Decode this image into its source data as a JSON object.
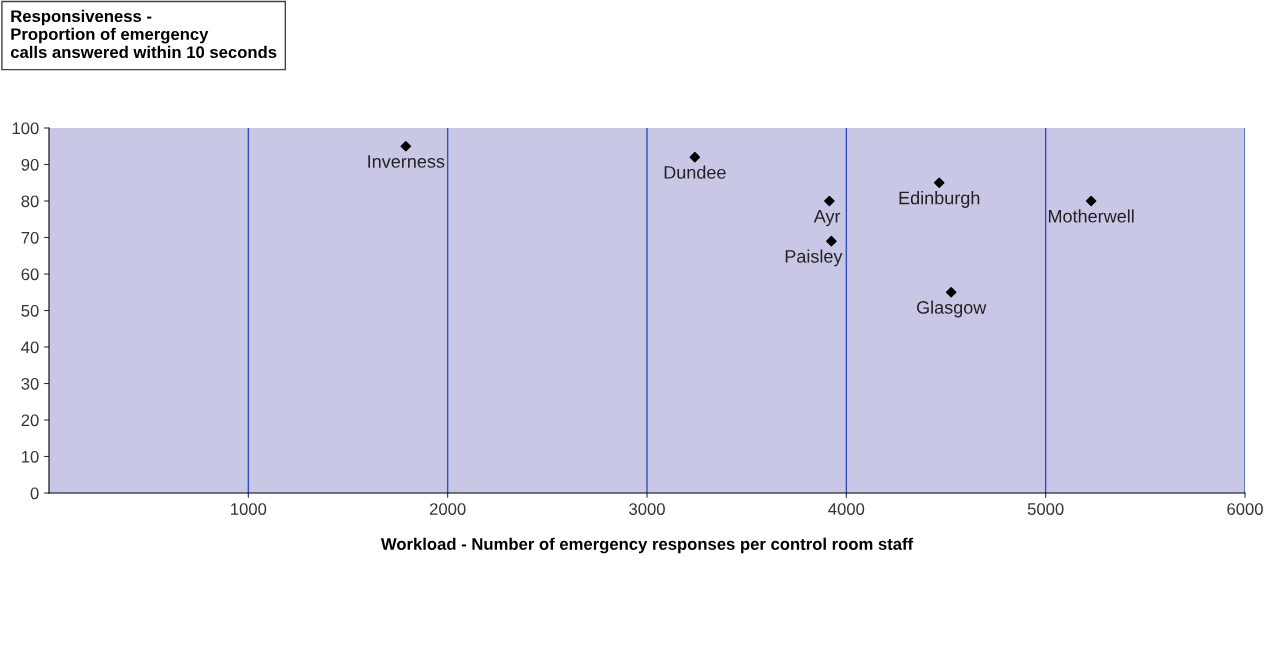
{
  "chart_data": {
    "type": "scatter",
    "title": "Responsiveness -\nProportion of emergency\ncalls answered within 10 seconds",
    "xlabel": "Workload - Number of emergency responses per control room staff",
    "series": [
      {
        "color": "#000000",
        "x": [
          1790,
          3240,
          3915,
          3925,
          4466,
          4526,
          5228
        ],
        "values": [
          95,
          92,
          80,
          69,
          85,
          55,
          80
        ]
      }
    ],
    "annotations": [
      {
        "text": "Inverness",
        "x": 1790,
        "y": 95
      },
      {
        "text": "Dundee",
        "x": 3240,
        "y": 92
      },
      {
        "text": "Ayr",
        "x": 3915,
        "y": 80
      },
      {
        "text": "Paisley",
        "x": 3925,
        "y": 69
      },
      {
        "text": "Edinburgh",
        "x": 4466,
        "y": 85
      },
      {
        "text": "Glasgow",
        "x": 4526,
        "y": 55
      },
      {
        "text": "Motherwell",
        "x": 5228,
        "y": 80
      }
    ],
    "xlim": [
      0,
      6000
    ],
    "xticks": [
      1000,
      2000,
      3000,
      4000,
      5000,
      6000
    ],
    "ylim": [
      0,
      100
    ],
    "yticks": [
      0,
      10,
      20,
      30,
      40,
      50,
      60,
      70,
      80,
      90,
      100
    ],
    "grid": "x",
    "marker": "diamond",
    "legend": false
  }
}
